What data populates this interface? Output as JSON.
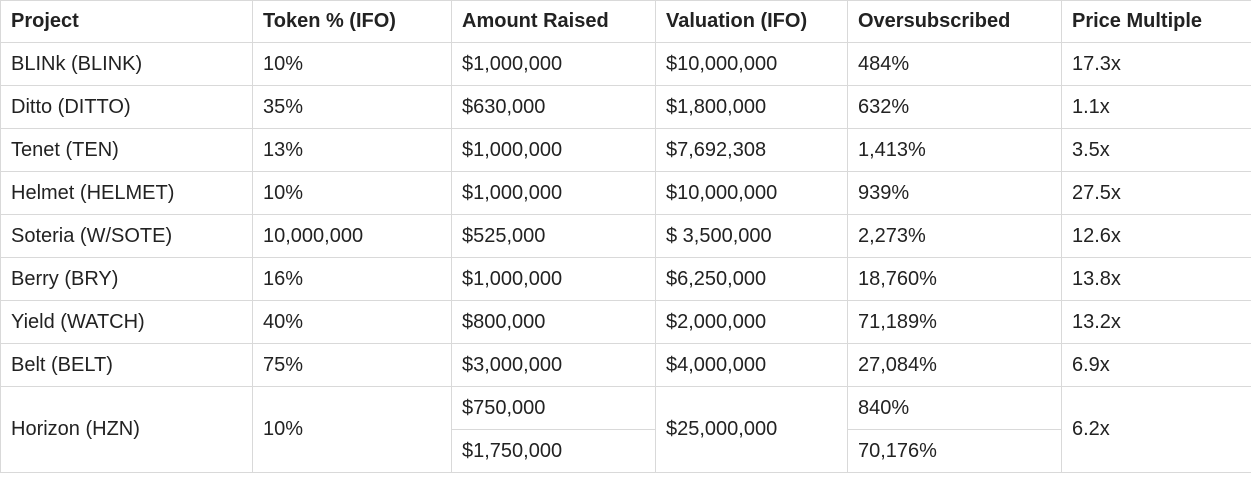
{
  "table": {
    "headers": [
      "Project",
      "Token % (IFO)",
      "Amount Raised",
      "Valuation (IFO)",
      "Oversubscribed",
      "Price Multiple"
    ],
    "rows": [
      [
        "BLINk (BLINK)",
        "10%",
        "$1,000,000",
        "$10,000,000",
        "484%",
        "17.3x"
      ],
      [
        "Ditto (DITTO)",
        "35%",
        "$630,000",
        "$1,800,000",
        "632%",
        "1.1x"
      ],
      [
        "Tenet (TEN)",
        "13%",
        "$1,000,000",
        "$7,692,308",
        "1,413%",
        "3.5x"
      ],
      [
        "Helmet (HELMET)",
        "10%",
        "$1,000,000",
        "$10,000,000",
        "939%",
        "27.5x"
      ],
      [
        "Soteria (W/SOTE)",
        "10,000,000",
        "$525,000",
        "$ 3,500,000",
        "2,273%",
        "12.6x"
      ],
      [
        "Berry (BRY)",
        "16%",
        "$1,000,000",
        "$6,250,000",
        "18,760%",
        "13.8x"
      ],
      [
        "Yield (WATCH)",
        "40%",
        "$800,000",
        "$2,000,000",
        "71,189%",
        "13.2x"
      ],
      [
        "Belt (BELT)",
        "75%",
        "$3,000,000",
        "$4,000,000",
        "27,084%",
        "6.9x"
      ]
    ],
    "horizon": {
      "project": "Horizon (HZN)",
      "token": "10%",
      "amounts": [
        "$750,000",
        "$1,750,000"
      ],
      "valuation": "$25,000,000",
      "oversubscribed": [
        "840%",
        "70,176%"
      ],
      "multiple": "6.2x"
    }
  }
}
